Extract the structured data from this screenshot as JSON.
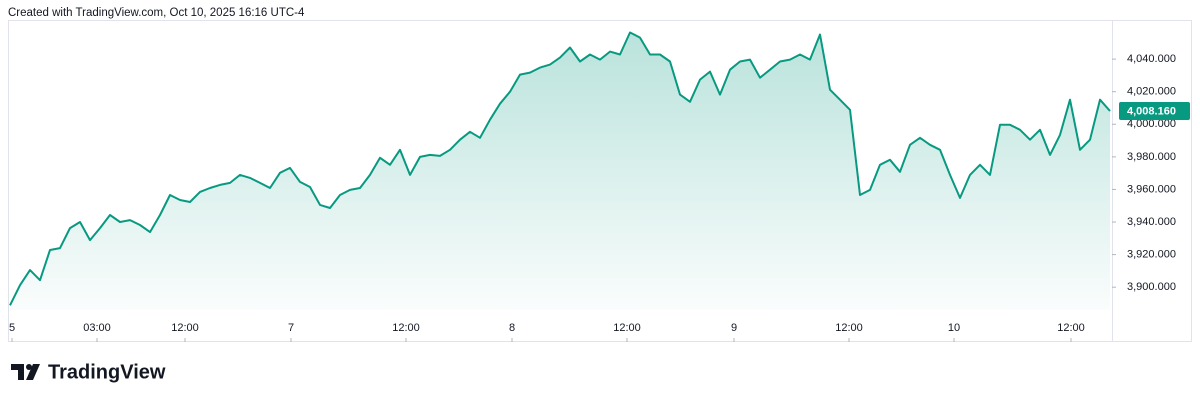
{
  "header": {
    "text": "Created with TradingView.com, Oct 10, 2025 16:16 UTC-4"
  },
  "chart_data": {
    "type": "area",
    "color": "#089981",
    "values": [
      3888.9,
      3901.2,
      3910.5,
      3904.3,
      3922.8,
      3924.0,
      3936.3,
      3940.0,
      3928.9,
      3936.3,
      3944.3,
      3940.0,
      3941.2,
      3938.2,
      3933.8,
      3944.3,
      3956.6,
      3953.5,
      3952.3,
      3958.5,
      3960.9,
      3962.8,
      3964.0,
      3968.9,
      3967.1,
      3964.0,
      3960.9,
      3970.2,
      3973.2,
      3964.6,
      3961.5,
      3950.5,
      3948.6,
      3956.6,
      3959.7,
      3960.9,
      3968.9,
      3979.4,
      3975.1,
      3984.3,
      3968.9,
      3980.0,
      3981.2,
      3980.6,
      3984.3,
      3990.5,
      3995.4,
      3991.7,
      4002.8,
      4012.6,
      4020.0,
      4030.5,
      4031.7,
      4034.8,
      4036.6,
      4040.9,
      4047.1,
      4038.5,
      4042.8,
      4039.7,
      4044.6,
      4042.8,
      4056.3,
      4053.2,
      4042.8,
      4042.8,
      4038.5,
      4018.2,
      4013.8,
      4027.4,
      4032.3,
      4018.2,
      4033.5,
      4038.5,
      4039.7,
      4028.6,
      4033.5,
      4038.5,
      4039.7,
      4042.8,
      4039.7,
      4055.1,
      4021.2,
      4015.1,
      4008.9,
      3956.6,
      3959.7,
      3975.1,
      3978.2,
      3970.8,
      3987.4,
      3991.7,
      3987.4,
      3984.3,
      3968.9,
      3954.8,
      3968.9,
      3975.1,
      3968.9,
      3999.7,
      3999.7,
      3996.6,
      3990.5,
      3996.6,
      3981.2,
      3993.5,
      4015.1,
      3984.3,
      3990.5,
      4015.1,
      4008.16
    ],
    "xlim": [
      0,
      110
    ],
    "xticks": [
      {
        "value": 0.2,
        "label": "5"
      },
      {
        "value": 8.7,
        "label": "03:00"
      },
      {
        "value": 17.5,
        "label": "12:00"
      },
      {
        "value": 28.1,
        "label": "7"
      },
      {
        "value": 39.6,
        "label": "12:00"
      },
      {
        "value": 50.2,
        "label": "8"
      },
      {
        "value": 61.7,
        "label": "12:00"
      },
      {
        "value": 72.4,
        "label": "9"
      },
      {
        "value": 83.9,
        "label": "12:00"
      },
      {
        "value": 94.4,
        "label": "10"
      },
      {
        "value": 106.1,
        "label": "12:00"
      }
    ],
    "ylim": [
      3886,
      4064
    ],
    "yticks": [
      {
        "value": 3900,
        "label": "3,900.000"
      },
      {
        "value": 3920,
        "label": "3,920.000"
      },
      {
        "value": 3940,
        "label": "3,940.000"
      },
      {
        "value": 3960,
        "label": "3,960.000"
      },
      {
        "value": 3980,
        "label": "3,980.000"
      },
      {
        "value": 4000,
        "label": "4,000.000"
      },
      {
        "value": 4020,
        "label": "4,020.000"
      },
      {
        "value": 4040,
        "label": "4,040.000"
      }
    ],
    "price_marker": {
      "value": 4008.16,
      "label": "4,008.160"
    }
  },
  "footer": {
    "brand": "TradingView"
  }
}
